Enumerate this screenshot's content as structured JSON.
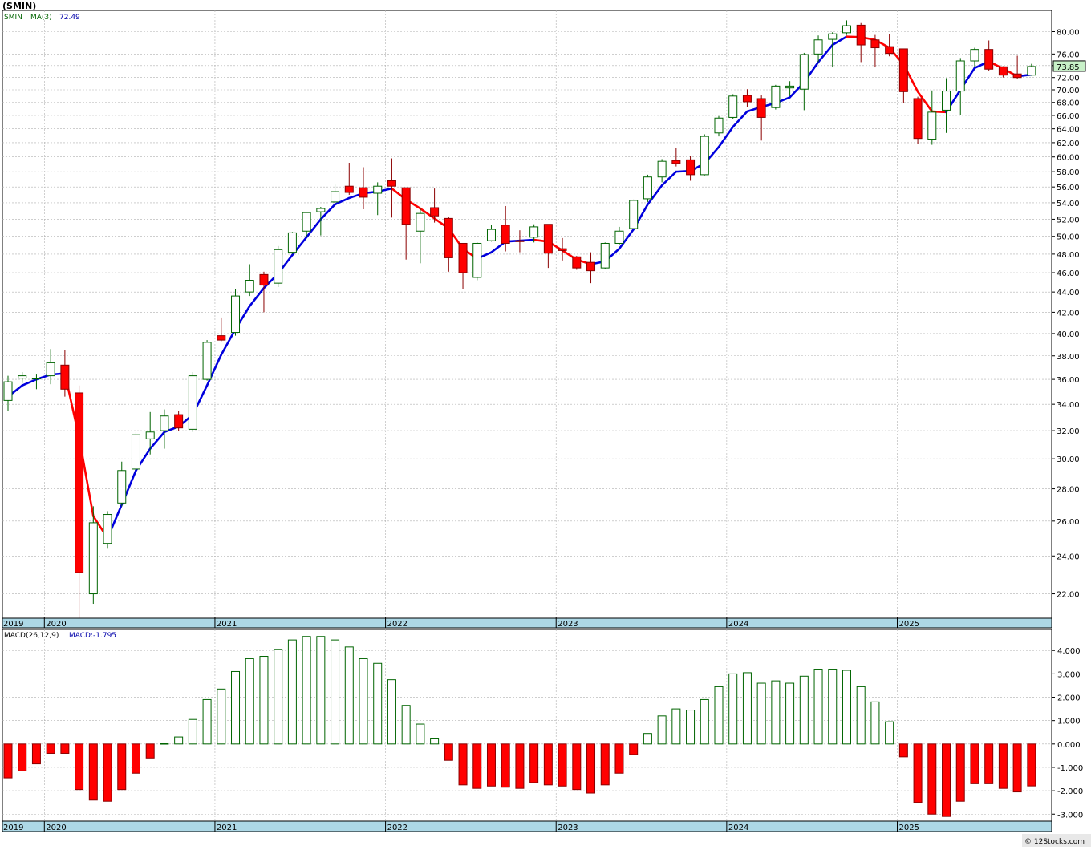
{
  "header": {
    "title": "(SMIN)",
    "ticker": "SMIN",
    "ma_label": "MA(3)",
    "ma_value": "72.49",
    "macd_label": "MACD(26,12,9)",
    "macd_value_label": "MACD:-1.795",
    "last_price": "73.85",
    "watermark": "© 12Stocks.com"
  },
  "colors": {
    "up_fill": "#ffffff",
    "up_stroke": "#006400",
    "down_fill": "#ff0000",
    "down_stroke": "#8b0000",
    "ma_up": "#0000dd",
    "ma_down": "#ff0000",
    "macd_pos_fill": "#ffffff",
    "macd_pos_stroke": "#006400",
    "macd_neg_fill": "#ff0000",
    "macd_neg_stroke": "#8b0000",
    "axis_band": "#add8e6",
    "grid": "#b0b0b0",
    "price_box": "#c8f0c8"
  },
  "chart_data": [
    {
      "type": "candlestick",
      "title": "(SMIN)",
      "y_scale": "log",
      "ylim": [
        20.8,
        84
      ],
      "yticks": [
        "22.00",
        "24.00",
        "26.00",
        "28.00",
        "30.00",
        "32.00",
        "34.00",
        "36.00",
        "38.00",
        "40.00",
        "42.00",
        "44.00",
        "46.00",
        "48.00",
        "50.00",
        "52.00",
        "54.00",
        "56.00",
        "58.00",
        "60.00",
        "62.00",
        "64.00",
        "66.00",
        "68.00",
        "70.00",
        "72.00",
        "74.00",
        "76.00",
        "80.00"
      ],
      "x_labels": [
        {
          "label": "2019",
          "month": 0
        },
        {
          "label": "2020",
          "month": 3
        },
        {
          "label": "2021",
          "month": 15
        },
        {
          "label": "2022",
          "month": 27
        },
        {
          "label": "2023",
          "month": 39
        },
        {
          "label": "2024",
          "month": 51
        },
        {
          "label": "2025",
          "month": 63
        }
      ],
      "grid": true,
      "candles": [
        {
          "o": 34.3,
          "h": 36.3,
          "l": 33.5,
          "c": 35.8
        },
        {
          "o": 36.1,
          "h": 36.6,
          "l": 35.7,
          "c": 36.3
        },
        {
          "o": 36.1,
          "h": 36.4,
          "l": 35.2,
          "c": 36.1
        },
        {
          "o": 36.3,
          "h": 38.6,
          "l": 35.6,
          "c": 37.4
        },
        {
          "o": 37.2,
          "h": 38.5,
          "l": 34.6,
          "c": 35.2
        },
        {
          "o": 34.9,
          "h": 35.5,
          "l": 20.8,
          "c": 23.1
        },
        {
          "o": 22.0,
          "h": 26.9,
          "l": 21.5,
          "c": 25.9
        },
        {
          "o": 24.7,
          "h": 26.6,
          "l": 24.4,
          "c": 26.4
        },
        {
          "o": 27.1,
          "h": 29.8,
          "l": 26.9,
          "c": 29.2
        },
        {
          "o": 29.3,
          "h": 31.9,
          "l": 29.1,
          "c": 31.7
        },
        {
          "o": 31.4,
          "h": 33.4,
          "l": 30.3,
          "c": 31.9
        },
        {
          "o": 32.0,
          "h": 33.6,
          "l": 30.7,
          "c": 33.1
        },
        {
          "o": 33.2,
          "h": 33.5,
          "l": 32.0,
          "c": 32.2
        },
        {
          "o": 32.1,
          "h": 36.6,
          "l": 31.9,
          "c": 36.3
        },
        {
          "o": 36.0,
          "h": 39.4,
          "l": 35.9,
          "c": 39.2
        },
        {
          "o": 39.8,
          "h": 41.5,
          "l": 39.3,
          "c": 39.4
        },
        {
          "o": 40.1,
          "h": 44.3,
          "l": 39.8,
          "c": 43.6
        },
        {
          "o": 44.0,
          "h": 46.9,
          "l": 43.6,
          "c": 45.2
        },
        {
          "o": 45.8,
          "h": 46.1,
          "l": 42.0,
          "c": 44.7
        },
        {
          "o": 44.9,
          "h": 48.9,
          "l": 44.5,
          "c": 48.5
        },
        {
          "o": 48.2,
          "h": 50.5,
          "l": 48.0,
          "c": 50.4
        },
        {
          "o": 50.6,
          "h": 52.9,
          "l": 50.0,
          "c": 52.8
        },
        {
          "o": 52.9,
          "h": 53.5,
          "l": 50.1,
          "c": 53.3
        },
        {
          "o": 54.1,
          "h": 56.3,
          "l": 53.6,
          "c": 55.4
        },
        {
          "o": 56.1,
          "h": 59.2,
          "l": 55.0,
          "c": 55.3
        },
        {
          "o": 55.9,
          "h": 58.6,
          "l": 53.2,
          "c": 54.7
        },
        {
          "o": 55.2,
          "h": 56.6,
          "l": 52.5,
          "c": 56.1
        },
        {
          "o": 56.8,
          "h": 59.8,
          "l": 52.2,
          "c": 56.1
        },
        {
          "o": 55.9,
          "h": 55.9,
          "l": 47.4,
          "c": 51.4
        },
        {
          "o": 50.6,
          "h": 53.3,
          "l": 47.0,
          "c": 52.7
        },
        {
          "o": 53.4,
          "h": 55.8,
          "l": 51.6,
          "c": 52.4
        },
        {
          "o": 52.1,
          "h": 52.3,
          "l": 46.1,
          "c": 47.6
        },
        {
          "o": 49.2,
          "h": 49.2,
          "l": 44.3,
          "c": 46.0
        },
        {
          "o": 45.5,
          "h": 49.3,
          "l": 45.2,
          "c": 49.2
        },
        {
          "o": 49.5,
          "h": 51.3,
          "l": 49.4,
          "c": 50.8
        },
        {
          "o": 51.3,
          "h": 53.6,
          "l": 48.3,
          "c": 49.2
        },
        {
          "o": 49.5,
          "h": 50.7,
          "l": 48.2,
          "c": 49.4
        },
        {
          "o": 49.9,
          "h": 51.4,
          "l": 49.3,
          "c": 51.1
        },
        {
          "o": 51.4,
          "h": 51.4,
          "l": 46.5,
          "c": 48.1
        },
        {
          "o": 48.6,
          "h": 49.8,
          "l": 47.3,
          "c": 48.4
        },
        {
          "o": 47.7,
          "h": 47.8,
          "l": 46.3,
          "c": 46.5
        },
        {
          "o": 47.1,
          "h": 48.2,
          "l": 44.9,
          "c": 46.2
        },
        {
          "o": 46.5,
          "h": 49.3,
          "l": 46.4,
          "c": 49.2
        },
        {
          "o": 49.2,
          "h": 51.1,
          "l": 49.0,
          "c": 50.6
        },
        {
          "o": 50.9,
          "h": 54.4,
          "l": 50.9,
          "c": 54.3
        },
        {
          "o": 54.5,
          "h": 57.6,
          "l": 54.1,
          "c": 57.3
        },
        {
          "o": 57.3,
          "h": 59.7,
          "l": 56.6,
          "c": 59.4
        },
        {
          "o": 59.5,
          "h": 61.2,
          "l": 58.7,
          "c": 59.1
        },
        {
          "o": 59.6,
          "h": 60.1,
          "l": 56.8,
          "c": 57.6
        },
        {
          "o": 57.6,
          "h": 63.2,
          "l": 57.5,
          "c": 62.9
        },
        {
          "o": 63.4,
          "h": 65.9,
          "l": 62.9,
          "c": 65.6
        },
        {
          "o": 65.7,
          "h": 69.3,
          "l": 65.4,
          "c": 69.0
        },
        {
          "o": 69.1,
          "h": 70.1,
          "l": 67.3,
          "c": 68.1
        },
        {
          "o": 68.6,
          "h": 69.1,
          "l": 62.3,
          "c": 65.7
        },
        {
          "o": 67.2,
          "h": 70.8,
          "l": 66.9,
          "c": 70.6
        },
        {
          "o": 70.3,
          "h": 71.4,
          "l": 69.0,
          "c": 70.6
        },
        {
          "o": 70.1,
          "h": 76.2,
          "l": 66.8,
          "c": 75.9
        },
        {
          "o": 76.0,
          "h": 79.3,
          "l": 74.6,
          "c": 78.5
        },
        {
          "o": 78.6,
          "h": 79.9,
          "l": 73.7,
          "c": 79.6
        },
        {
          "o": 79.8,
          "h": 82.1,
          "l": 79.4,
          "c": 81.1
        },
        {
          "o": 81.2,
          "h": 81.6,
          "l": 74.6,
          "c": 77.6
        },
        {
          "o": 78.5,
          "h": 79.4,
          "l": 73.7,
          "c": 77.1
        },
        {
          "o": 77.3,
          "h": 79.6,
          "l": 75.6,
          "c": 76.1
        },
        {
          "o": 76.9,
          "h": 76.9,
          "l": 67.9,
          "c": 69.7
        },
        {
          "o": 68.6,
          "h": 68.9,
          "l": 61.8,
          "c": 62.6
        },
        {
          "o": 62.5,
          "h": 69.9,
          "l": 61.7,
          "c": 66.5
        },
        {
          "o": 66.8,
          "h": 71.9,
          "l": 63.4,
          "c": 69.8
        },
        {
          "o": 69.8,
          "h": 75.3,
          "l": 66.1,
          "c": 74.8
        },
        {
          "o": 74.8,
          "h": 77.1,
          "l": 73.7,
          "c": 76.8
        },
        {
          "o": 76.8,
          "h": 78.4,
          "l": 73.1,
          "c": 73.4
        },
        {
          "o": 73.8,
          "h": 73.9,
          "l": 72.0,
          "c": 72.4
        },
        {
          "o": 72.6,
          "h": 75.7,
          "l": 71.7,
          "c": 72.0
        },
        {
          "o": 72.4,
          "h": 74.3,
          "l": 72.3,
          "c": 73.85
        }
      ],
      "ma3": [
        34.6,
        35.5,
        36.0,
        36.4,
        36.5,
        31.5,
        26.3,
        25.0,
        27.0,
        29.2,
        30.7,
        31.9,
        32.3,
        33.2,
        35.5,
        38.1,
        40.4,
        42.6,
        44.4,
        45.9,
        47.9,
        49.9,
        52.0,
        53.8,
        54.6,
        55.2,
        55.4,
        55.8,
        54.4,
        53.3,
        52.1,
        50.9,
        48.6,
        47.5,
        48.2,
        49.4,
        49.5,
        49.6,
        49.4,
        48.4,
        47.4,
        46.9,
        47.2,
        48.6,
        50.8,
        53.8,
        56.2,
        58.0,
        58.1,
        59.1,
        61.4,
        64.3,
        66.6,
        67.3,
        67.9,
        68.8,
        71.2,
        74.6,
        77.6,
        79.1,
        79.0,
        78.5,
        77.1,
        74.2,
        69.7,
        66.6,
        66.5,
        70.0,
        73.6,
        74.7,
        73.5,
        72.2,
        72.49
      ]
    },
    {
      "type": "bar",
      "title": "MACD(26,12,9)",
      "ylim": [
        -3.3,
        4.9
      ],
      "yticks": [
        "4.000",
        "3.000",
        "2.000",
        "1.000",
        "0.000",
        "-1.000",
        "-2.000",
        "-3.000"
      ],
      "x_labels": [
        {
          "label": "2019",
          "month": 0
        },
        {
          "label": "2020",
          "month": 3
        },
        {
          "label": "2021",
          "month": 15
        },
        {
          "label": "2022",
          "month": 27
        },
        {
          "label": "2023",
          "month": 39
        },
        {
          "label": "2024",
          "month": 51
        },
        {
          "label": "2025",
          "month": 63
        }
      ],
      "values": [
        -1.45,
        -1.15,
        -0.85,
        -0.4,
        -0.4,
        -1.95,
        -2.4,
        -2.45,
        -1.95,
        -1.25,
        -0.6,
        0.02,
        0.3,
        1.05,
        1.9,
        2.35,
        3.1,
        3.65,
        3.75,
        4.05,
        4.45,
        4.6,
        4.6,
        4.45,
        4.15,
        3.65,
        3.45,
        2.75,
        1.65,
        0.85,
        0.25,
        -0.7,
        -1.75,
        -1.9,
        -1.8,
        -1.85,
        -1.9,
        -1.65,
        -1.75,
        -1.8,
        -1.95,
        -2.1,
        -1.75,
        -1.25,
        -0.45,
        0.45,
        1.2,
        1.5,
        1.45,
        1.9,
        2.45,
        3.0,
        3.05,
        2.6,
        2.7,
        2.6,
        2.9,
        3.2,
        3.2,
        3.15,
        2.45,
        1.8,
        0.95,
        -0.55,
        -2.5,
        -3.0,
        -3.1,
        -2.45,
        -1.7,
        -1.7,
        -1.9,
        -2.05,
        -1.795
      ]
    }
  ]
}
